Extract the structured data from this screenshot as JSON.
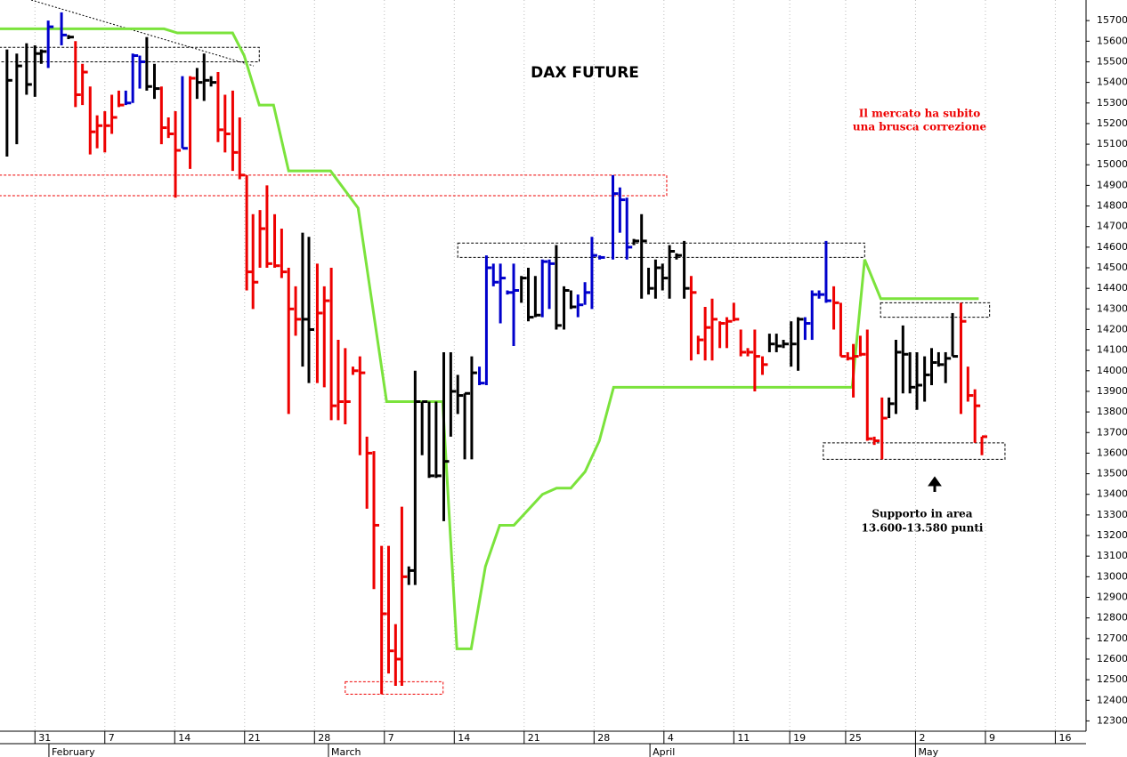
{
  "chart_data": {
    "type": "ohlc",
    "title": "DAX FUTURE",
    "annotations": [
      "Il mercato ha subito",
      "una brusca correzione",
      "Supporto in area",
      "13.600-13.580 punti"
    ],
    "xlim": [
      -2.5,
      75.2
    ],
    "ylim": [
      12250,
      15800
    ],
    "yticks": [
      15700,
      15600,
      15500,
      15400,
      15300,
      15200,
      15100,
      15000,
      14900,
      14800,
      14700,
      14600,
      14500,
      14400,
      14300,
      14200,
      14100,
      14000,
      13900,
      13800,
      13700,
      13600,
      13500,
      13400,
      13300,
      13200,
      13100,
      13000,
      12900,
      12800,
      12700,
      12600,
      12500,
      12400,
      12300
    ],
    "xticks": [
      {
        "value": 0,
        "label": "31"
      },
      {
        "value": 5,
        "label": "7"
      },
      {
        "value": 10,
        "label": "14"
      },
      {
        "value": 15,
        "label": "21"
      },
      {
        "value": 20,
        "label": "28"
      },
      {
        "value": 25,
        "label": "7"
      },
      {
        "value": 30,
        "label": "14"
      },
      {
        "value": 35,
        "label": "21"
      },
      {
        "value": 40,
        "label": "28"
      },
      {
        "value": 45,
        "label": "4"
      },
      {
        "value": 50,
        "label": "11"
      },
      {
        "value": 54,
        "label": "19"
      },
      {
        "value": 58,
        "label": "25"
      },
      {
        "value": 63,
        "label": "2"
      },
      {
        "value": 68,
        "label": "9"
      },
      {
        "value": 73,
        "label": "16"
      }
    ],
    "month_ticks": [
      {
        "value": 1,
        "label": "February"
      },
      {
        "value": 21,
        "label": "March"
      },
      {
        "value": 44,
        "label": "April"
      },
      {
        "value": 63,
        "label": "May"
      }
    ],
    "grid": true,
    "bars": {
      "x": [
        -2,
        -1.3,
        -0.6,
        0,
        0.45,
        0.95,
        1.9,
        2.4,
        2.9,
        3.4,
        3.95,
        4.45,
        5,
        5.5,
        6,
        6.5,
        7,
        7.5,
        8,
        8.55,
        9.05,
        9.55,
        10.05,
        10.55,
        11.1,
        11.6,
        12.1,
        12.6,
        13.1,
        13.6,
        14.15,
        14.65,
        15.15,
        15.6,
        16.1,
        16.6,
        17.15,
        17.65,
        18.15,
        18.65,
        19.15,
        19.6,
        20.2,
        20.7,
        21.2,
        21.7,
        22.2,
        22.75,
        23.25,
        23.75,
        24.25,
        24.8,
        25.3,
        25.8,
        26.25,
        26.75,
        27.2,
        27.7,
        28.2,
        28.7,
        29.25,
        29.75,
        30.25,
        30.75,
        31.25,
        31.8,
        32.3,
        32.8,
        33.3,
        33.8,
        34.25,
        34.8,
        35.3,
        35.8,
        36.3,
        36.8,
        37.3,
        37.85,
        38.35,
        38.85,
        39.35,
        39.85,
        40.4,
        41.35,
        41.85,
        42.35,
        42.85,
        43.4,
        43.9,
        44.4,
        44.9,
        45.4,
        45.9,
        46.45,
        46.95,
        47.45,
        47.95,
        48.45,
        49,
        49.5,
        50,
        50.5,
        51,
        51.5,
        52.05,
        52.55,
        53.05,
        53.55,
        54.1,
        54.6,
        55.1,
        55.6,
        56.1,
        56.6,
        57.15,
        57.65,
        58.15,
        58.55,
        59.05,
        59.55,
        60.05,
        60.6,
        61.1,
        61.6,
        62.1,
        62.6,
        63.1,
        63.65,
        64.15,
        64.65,
        65.15,
        65.65,
        66.25,
        66.75,
        67.25,
        67.75
      ],
      "high": [
        15560,
        15540,
        15590,
        15580,
        15560,
        15700,
        15740,
        15630,
        15600,
        15490,
        15380,
        15240,
        15260,
        15340,
        15360,
        15360,
        15540,
        15530,
        15620,
        15490,
        15380,
        15230,
        15260,
        15430,
        15430,
        15470,
        15540,
        15430,
        15450,
        15340,
        15360,
        15230,
        14950,
        14760,
        14780,
        14900,
        14760,
        14690,
        14500,
        14410,
        14670,
        14650,
        14520,
        14410,
        14500,
        14150,
        14110,
        14020,
        14070,
        13680,
        13610,
        13150,
        13150,
        12770,
        13340,
        13050,
        14000,
        13850,
        13850,
        13850,
        14090,
        14090,
        13980,
        13890,
        14070,
        14020,
        14560,
        14520,
        14520,
        14390,
        14520,
        14460,
        14500,
        14460,
        14540,
        14540,
        14610,
        14410,
        14390,
        14370,
        14430,
        14650,
        14560,
        14950,
        14890,
        14840,
        14640,
        14760,
        14500,
        14540,
        14520,
        14610,
        14570,
        14630,
        14460,
        14170,
        14310,
        14350,
        14240,
        14260,
        14330,
        14200,
        14110,
        14200,
        14070,
        14180,
        14180,
        14150,
        14240,
        14260,
        14260,
        14390,
        14390,
        14630,
        14410,
        14330,
        14090,
        14130,
        14170,
        14200,
        13680,
        13870,
        13870,
        14150,
        14220,
        14090,
        14090,
        14070,
        14110,
        14090,
        14090,
        14280,
        14330,
        14020,
        13910,
        13680
      ],
      "low": [
        15040,
        15100,
        15340,
        15330,
        15490,
        15470,
        15580,
        15610,
        15280,
        15290,
        15050,
        15080,
        15060,
        15150,
        15280,
        15290,
        15300,
        15370,
        15360,
        15320,
        15100,
        15130,
        14840,
        15080,
        14980,
        15320,
        15310,
        15380,
        15110,
        15060,
        14970,
        14930,
        14390,
        14300,
        14500,
        14500,
        14500,
        14450,
        13790,
        14170,
        14020,
        13940,
        13940,
        13920,
        13760,
        13760,
        13740,
        13980,
        13590,
        13330,
        12940,
        12430,
        12530,
        12470,
        12470,
        12960,
        12960,
        13590,
        13480,
        13480,
        13270,
        13680,
        13790,
        13570,
        13570,
        13930,
        13930,
        14410,
        14230,
        14370,
        14120,
        14330,
        14240,
        14260,
        14260,
        14300,
        14200,
        14200,
        14300,
        14260,
        14320,
        14300,
        14540,
        14540,
        14670,
        14540,
        14610,
        14350,
        14370,
        14350,
        14390,
        14350,
        14540,
        14350,
        14050,
        14080,
        14050,
        14050,
        14110,
        14110,
        14240,
        14070,
        14070,
        13900,
        13980,
        14090,
        14090,
        14110,
        14020,
        14000,
        14150,
        14150,
        14350,
        14330,
        14200,
        14070,
        14050,
        13870,
        14070,
        13660,
        13640,
        13570,
        13770,
        13790,
        13890,
        13890,
        13810,
        13850,
        13930,
        14020,
        13940,
        14070,
        13790,
        13850,
        13650,
        13590
      ],
      "close": [
        15410,
        15480,
        15390,
        15540,
        15550,
        15670,
        15630,
        15620,
        15340,
        15450,
        15160,
        15190,
        15190,
        15230,
        15290,
        15300,
        15530,
        15500,
        15380,
        15370,
        15180,
        15150,
        15070,
        15080,
        15420,
        15400,
        15410,
        15400,
        15170,
        15150,
        15060,
        14950,
        14480,
        14430,
        14690,
        14520,
        14510,
        14480,
        14300,
        14250,
        14250,
        14200,
        14280,
        14340,
        13830,
        13850,
        13850,
        14000,
        13990,
        13600,
        13250,
        12820,
        12640,
        12600,
        13000,
        13030,
        13850,
        13850,
        13490,
        13490,
        13560,
        13900,
        13880,
        13890,
        13990,
        13940,
        14500,
        14430,
        14450,
        14380,
        14390,
        14450,
        14260,
        14270,
        14530,
        14520,
        14220,
        14390,
        14310,
        14320,
        14380,
        14560,
        14550,
        14860,
        14830,
        14600,
        14630,
        14630,
        14400,
        14500,
        14450,
        14580,
        14560,
        14400,
        14380,
        14150,
        14210,
        14250,
        14230,
        14240,
        14250,
        14090,
        14090,
        14070,
        14030,
        14130,
        14120,
        14130,
        14130,
        14250,
        14230,
        14370,
        14370,
        14340,
        14330,
        14070,
        14060,
        14070,
        14080,
        13670,
        13660,
        13770,
        13840,
        14090,
        14080,
        13920,
        13930,
        13980,
        14040,
        14030,
        14060,
        14070,
        14240,
        13880,
        13830,
        13680
      ],
      "colors": [
        "#000",
        "#000",
        "#000",
        "#000",
        "#000",
        "#00c",
        "#00c",
        "#000",
        "#e00",
        "#e00",
        "#e00",
        "#e00",
        "#e00",
        "#e00",
        "#e00",
        "#00c",
        "#00c",
        "#00c",
        "#000",
        "#000",
        "#e00",
        "#e00",
        "#e00",
        "#00c",
        "#e00",
        "#000",
        "#000",
        "#000",
        "#e00",
        "#e00",
        "#e00",
        "#e00",
        "#e00",
        "#e00",
        "#e00",
        "#e00",
        "#e00",
        "#e00",
        "#e00",
        "#e00",
        "#000",
        "#000",
        "#e00",
        "#e00",
        "#e00",
        "#e00",
        "#e00",
        "#e00",
        "#e00",
        "#e00",
        "#e00",
        "#e00",
        "#e00",
        "#e00",
        "#e00",
        "#000",
        "#000",
        "#000",
        "#000",
        "#000",
        "#000",
        "#000",
        "#000",
        "#000",
        "#000",
        "#00c",
        "#00c",
        "#00c",
        "#00c",
        "#00c",
        "#00c",
        "#000",
        "#000",
        "#000",
        "#00c",
        "#00c",
        "#000",
        "#000",
        "#000",
        "#00c",
        "#00c",
        "#00c",
        "#00c",
        "#00c",
        "#00c",
        "#00c",
        "#000",
        "#000",
        "#000",
        "#000",
        "#000",
        "#000",
        "#000",
        "#000",
        "#e00",
        "#e00",
        "#e00",
        "#e00",
        "#e00",
        "#e00",
        "#e00",
        "#e00",
        "#e00",
        "#e00",
        "#e00",
        "#000",
        "#000",
        "#000",
        "#000",
        "#000",
        "#00c",
        "#00c",
        "#00c",
        "#00c",
        "#e00",
        "#e00",
        "#e00",
        "#e00",
        "#e00",
        "#e00",
        "#e00",
        "#e00",
        "#000",
        "#000",
        "#000",
        "#000",
        "#000",
        "#000",
        "#000",
        "#000",
        "#000",
        "#000",
        "#e00",
        "#e00",
        "#e00",
        "#e00"
      ]
    },
    "line": {
      "color": "#7be33c",
      "x": [
        -2.55,
        9.24,
        10.19,
        14.14,
        14.97,
        16.05,
        17.07,
        18.15,
        21.15,
        23.12,
        25.16,
        29.17,
        30.19,
        31.21,
        32.23,
        33.25,
        34.27,
        36.31,
        37.32,
        38.34,
        39.36,
        40.38,
        41.4,
        58.47,
        59.36,
        60.51,
        67.52
      ],
      "values": [
        15660,
        15660,
        15640,
        15640,
        15530,
        15290,
        15290,
        14970,
        14970,
        14790,
        13850,
        13850,
        12650,
        12650,
        13050,
        13250,
        13250,
        13400,
        13430,
        13430,
        13510,
        13660,
        13920,
        13920,
        14540,
        14350,
        14350
      ]
    },
    "zones": [
      {
        "x": [
          -2.55,
          16.05
        ],
        "y": [
          15500,
          15570
        ],
        "color": "#000"
      },
      {
        "x": [
          -2.55,
          45.2
        ],
        "y": [
          14850,
          14950
        ],
        "color": "#e00"
      },
      {
        "x": [
          30.25,
          59.36
        ],
        "y": [
          14550,
          14620
        ],
        "color": "#000"
      },
      {
        "x": [
          60.5,
          68.3
        ],
        "y": [
          14260,
          14330
        ],
        "color": "#000"
      },
      {
        "x": [
          56.4,
          69.4
        ],
        "y": [
          13570,
          13650
        ],
        "color": "#000"
      },
      {
        "x": [
          22.2,
          29.2
        ],
        "y": [
          12430,
          12490
        ],
        "color": "#e00"
      }
    ],
    "trendline": {
      "x": [
        -0.27,
        15.65
      ],
      "values": [
        15800,
        15480
      ]
    }
  }
}
